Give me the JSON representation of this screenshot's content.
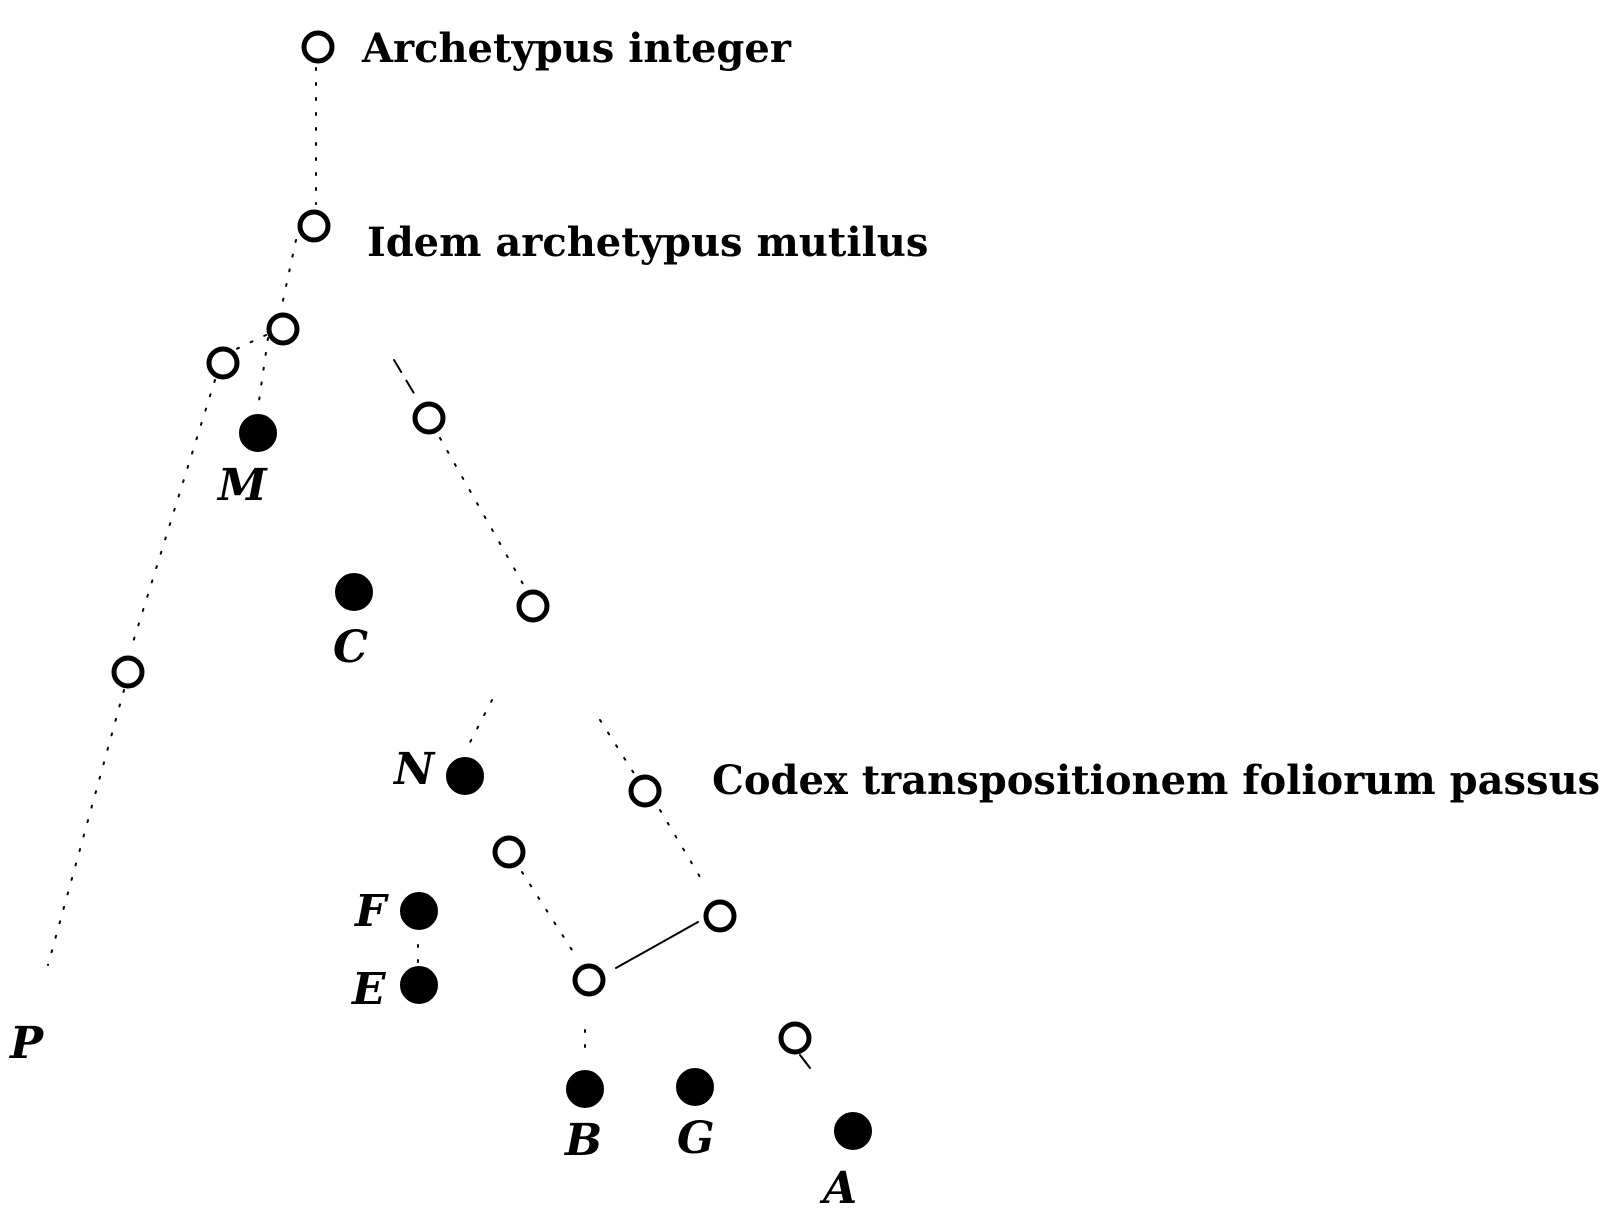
{
  "captions": {
    "archetypus_integer": "Archetypus integer",
    "archetypus_mutilus": "Idem archetypus mutilus",
    "codex_transpositionem": "Codex transpositionem foliorum passus"
  },
  "sigla": {
    "M": "M",
    "C": "C",
    "N": "N",
    "F": "F",
    "E": "E",
    "P": "P",
    "B": "B",
    "G": "G",
    "A": "A"
  }
}
